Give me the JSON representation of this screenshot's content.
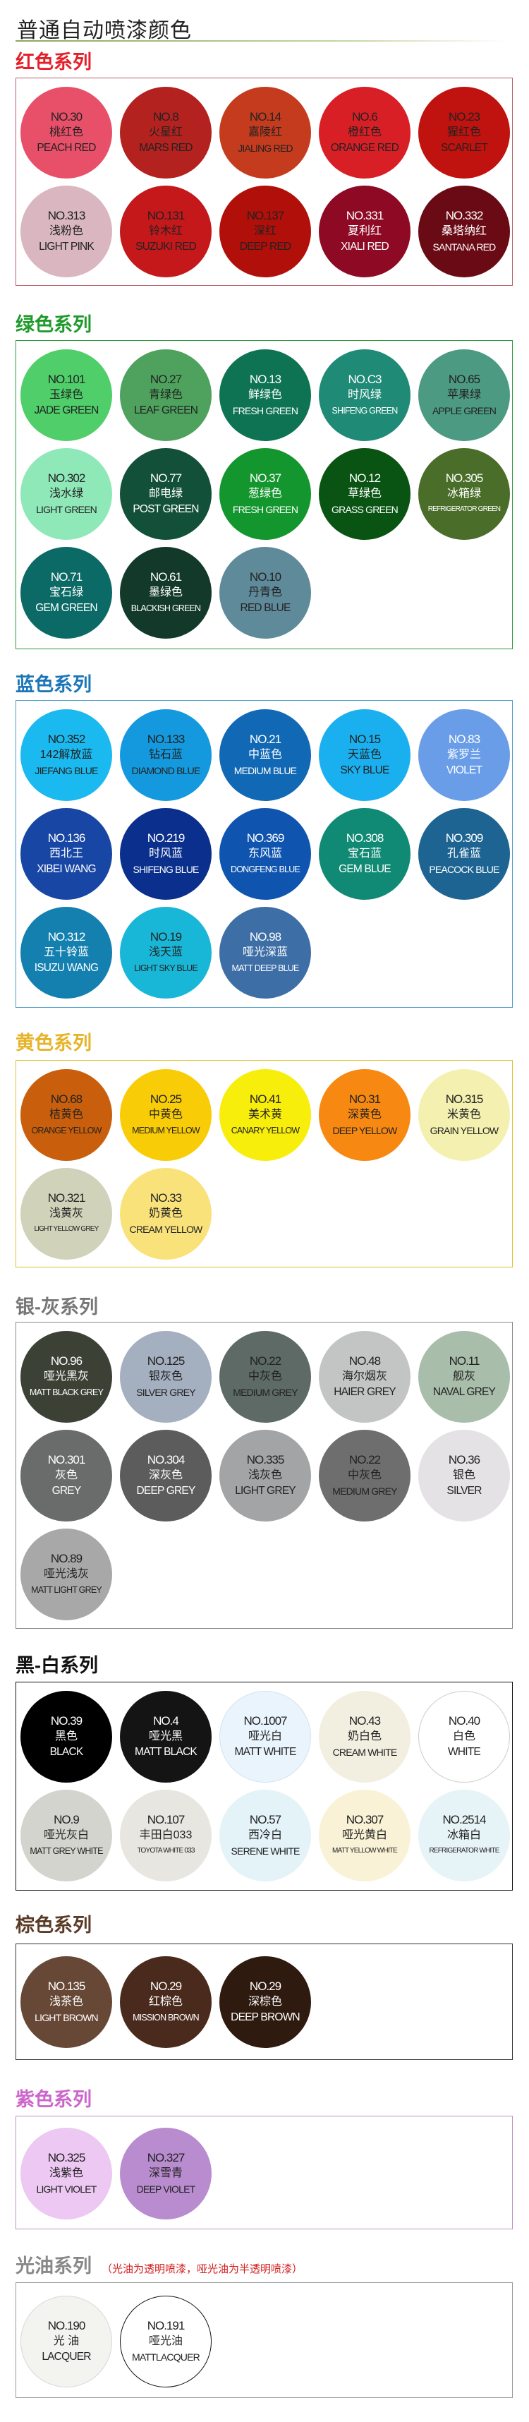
{
  "title": "普通自动喷漆颜色",
  "sections": [
    {
      "id": "red",
      "heading": "红色系列",
      "head_color": "#e5202a",
      "border": "#b8606c",
      "items": [
        {
          "no": "NO.30",
          "cn": "桃红色",
          "en": "PEACH RED",
          "color": "#e8506a",
          "text": "#222"
        },
        {
          "no": "NO.8",
          "cn": "火星红",
          "en": "MARS RED",
          "color": "#b3221f",
          "text": "#222"
        },
        {
          "no": "NO.14",
          "cn": "嘉陵红",
          "en": "JIALING RED",
          "color": "#c43b1e",
          "text": "#222"
        },
        {
          "no": "NO.6",
          "cn": "橙红色",
          "en": "ORANGE RED",
          "color": "#d91f26",
          "text": "#222"
        },
        {
          "no": "NO.23",
          "cn": "猩红色",
          "en": "SCARLET",
          "color": "#c0120e",
          "text": "#222"
        },
        {
          "no": "NO.313",
          "cn": "浅粉色",
          "en": "LIGHT PINK",
          "color": "#d9b6c0",
          "text": "#222"
        },
        {
          "no": "NO.131",
          "cn": "铃木红",
          "en": "SUZUKI RED",
          "color": "#c4181a",
          "text": "#222"
        },
        {
          "no": "NO.137",
          "cn": "深红",
          "en": "DEEP RED",
          "color": "#b00f0a",
          "text": "#222"
        },
        {
          "no": "NO.331",
          "cn": "夏利红",
          "en": "XIALI RED",
          "color": "#8e0a24",
          "text": "#fff"
        },
        {
          "no": "NO.332",
          "cn": "桑塔纳红",
          "en": "SANTANA RED",
          "color": "#6a0a14",
          "text": "#fff"
        }
      ]
    },
    {
      "id": "green",
      "heading": "绿色系列",
      "head_color": "#1e9a2b",
      "border": "#2e9a3a",
      "items": [
        {
          "no": "NO.101",
          "cn": "玉绿色",
          "en": "JADE GREEN",
          "color": "#4fce6a",
          "text": "#222"
        },
        {
          "no": "NO.27",
          "cn": "青绿色",
          "en": "LEAF GREEN",
          "color": "#4ea25e",
          "text": "#222"
        },
        {
          "no": "NO.13",
          "cn": "鲜绿色",
          "en": "FRESH GREEN",
          "color": "#0e7352",
          "text": "#fff"
        },
        {
          "no": "NO.C3",
          "cn": "时风绿",
          "en": "SHIFENG GREEN",
          "color": "#1f8a76",
          "text": "#fff"
        },
        {
          "no": "NO.65",
          "cn": "苹果绿",
          "en": "APPLE GREEN",
          "color": "#4c9a82",
          "text": "#222"
        },
        {
          "no": "NO.302",
          "cn": "浅水绿",
          "en": "LIGHT GREEN",
          "color": "#8fe8b8",
          "text": "#222"
        },
        {
          "no": "NO.77",
          "cn": "邮电绿",
          "en": "POST GREEN",
          "color": "#13503a",
          "text": "#fff"
        },
        {
          "no": "NO.37",
          "cn": "葱绿色",
          "en": "FRESH GREEN",
          "color": "#14962e",
          "text": "#fff"
        },
        {
          "no": "NO.12",
          "cn": "草绿色",
          "en": "GRASS GREEN",
          "color": "#0a5413",
          "text": "#fff"
        },
        {
          "no": "NO.305",
          "cn": "冰箱绿",
          "en": "REFRIGERATOR GREEN",
          "color": "#4a6e2a",
          "text": "#fff"
        },
        {
          "no": "NO.71",
          "cn": "宝石绿",
          "en": "GEM GREEN",
          "color": "#0c6a66",
          "text": "#fff"
        },
        {
          "no": "NO.61",
          "cn": "墨绿色",
          "en": "BLACKISH GREEN",
          "color": "#12392a",
          "text": "#fff"
        },
        {
          "no": "NO.10",
          "cn": "丹青色",
          "en": "RED BLUE",
          "color": "#5f8a9a",
          "text": "#222"
        }
      ]
    },
    {
      "id": "blue",
      "heading": "蓝色系列",
      "head_color": "#1a76b8",
      "border": "#4b9cc8",
      "items": [
        {
          "no": "NO.352",
          "cn": "142解放蓝",
          "en": "JIEFANG BLUE",
          "color": "#1ab9f0",
          "text": "#222"
        },
        {
          "no": "NO.133",
          "cn": "钻石蓝",
          "en": "DIAMOND BLUE",
          "color": "#1499de",
          "text": "#222"
        },
        {
          "no": "NO.21",
          "cn": "中蓝色",
          "en": "MEDIUM BLUE",
          "color": "#1168b4",
          "text": "#fff"
        },
        {
          "no": "NO.15",
          "cn": "天蓝色",
          "en": "SKY BLUE",
          "color": "#1ab0ef",
          "text": "#222"
        },
        {
          "no": "NO.83",
          "cn": "紫罗兰",
          "en": "VIOLET",
          "color": "#6a9de8",
          "text": "#fff"
        },
        {
          "no": "NO.136",
          "cn": "西北王",
          "en": "XIBEI WANG",
          "color": "#1746a4",
          "text": "#fff"
        },
        {
          "no": "NO.219",
          "cn": "时风蓝",
          "en": "SHIFENG BLUE",
          "color": "#0b2f8c",
          "text": "#fff"
        },
        {
          "no": "NO.369",
          "cn": "东风蓝",
          "en": "DONGFENG BLUE",
          "color": "#0f55b0",
          "text": "#fff"
        },
        {
          "no": "NO.308",
          "cn": "宝石蓝",
          "en": "GEM BLUE",
          "color": "#108a74",
          "text": "#fff"
        },
        {
          "no": "NO.309",
          "cn": "孔雀蓝",
          "en": "PEACOCK BLUE",
          "color": "#1d6492",
          "text": "#fff"
        },
        {
          "no": "NO.312",
          "cn": "五十铃蓝",
          "en": "ISUZU WANG",
          "color": "#1480b0",
          "text": "#fff"
        },
        {
          "no": "NO.19",
          "cn": "浅天蓝",
          "en": "LIGHT SKY BLUE",
          "color": "#19b7d7",
          "text": "#222"
        },
        {
          "no": "NO.98",
          "cn": "哑光深蓝",
          "en": "MATT DEEP BLUE",
          "color": "#3d6ea6",
          "text": "#fff"
        }
      ]
    },
    {
      "id": "yellow",
      "heading": "黄色系列",
      "head_color": "#e6b428",
      "border": "#e0c030",
      "items": [
        {
          "no": "NO.68",
          "cn": "桔黄色",
          "en": "ORANGE YELLOW",
          "color": "#c95f0c",
          "text": "#222"
        },
        {
          "no": "NO.25",
          "cn": "中黄色",
          "en": "MEDIUM YELLOW",
          "color": "#f9cc08",
          "text": "#222"
        },
        {
          "no": "NO.41",
          "cn": "美术黄",
          "en": "CANARY YELLOW",
          "color": "#f8ee0c",
          "text": "#222"
        },
        {
          "no": "NO.31",
          "cn": "深黄色",
          "en": "DEEP YELLOW",
          "color": "#f78812",
          "text": "#222"
        },
        {
          "no": "NO.315",
          "cn": "米黄色",
          "en": "GRAIN YELLOW",
          "color": "#f4f0b0",
          "text": "#222"
        },
        {
          "no": "NO.321",
          "cn": "浅黄灰",
          "en": "LIGHT YELLOW GREY",
          "color": "#d0d2ba",
          "text": "#222"
        },
        {
          "no": "NO.33",
          "cn": "奶黄色",
          "en": "CREAM YELLOW",
          "color": "#fae27a",
          "text": "#222"
        }
      ]
    },
    {
      "id": "grey",
      "heading": "银-灰系列",
      "head_color": "#777777",
      "border": "#888888",
      "items": [
        {
          "no": "NO.96",
          "cn": "哑光黑灰",
          "en": "MATT BLACK GREY",
          "color": "#3c4136",
          "text": "#fff"
        },
        {
          "no": "NO.125",
          "cn": "银灰色",
          "en": "SILVER GREY",
          "color": "#a4afbf",
          "text": "#222"
        },
        {
          "no": "NO.22",
          "cn": "中灰色",
          "en": "MEDIUM GREY",
          "color": "#5d6a66",
          "text": "#222"
        },
        {
          "no": "NO.48",
          "cn": "海尔烟灰",
          "en": "HAIER GREY",
          "color": "#c3c5c5",
          "text": "#222"
        },
        {
          "no": "NO.11",
          "cn": "舰灰",
          "en": "NAVAL GREY",
          "color": "#a8bdaa",
          "text": "#222"
        },
        {
          "no": "NO.301",
          "cn": "灰色",
          "en": "GREY",
          "color": "#6a6c6c",
          "text": "#fff"
        },
        {
          "no": "NO.304",
          "cn": "深灰色",
          "en": "DEEP GREY",
          "color": "#5c5c5c",
          "text": "#fff"
        },
        {
          "no": "NO.335",
          "cn": "浅灰色",
          "en": "LIGHT GREY",
          "color": "#a3a4a5",
          "text": "#222"
        },
        {
          "no": "NO.22",
          "cn": "中灰色",
          "en": "MEDIUM GREY",
          "color": "#6e6e6e",
          "text": "#222"
        },
        {
          "no": "NO.36",
          "cn": "银色",
          "en": "SILVER",
          "color": "#e4e2e4",
          "text": "#222"
        },
        {
          "no": "NO.89",
          "cn": "哑光浅灰",
          "en": "MATT LIGHT GREY",
          "color": "#a8a8a8",
          "text": "#222"
        }
      ]
    },
    {
      "id": "black-white",
      "heading": "黑-白系列",
      "head_color": "#111111",
      "border": "#111111",
      "items": [
        {
          "no": "NO.39",
          "cn": "黑色",
          "en": "BLACK",
          "color": "#000000",
          "text": "#fff"
        },
        {
          "no": "NO.4",
          "cn": "哑光黑",
          "en": "MATT BLACK",
          "color": "#141414",
          "text": "#fff"
        },
        {
          "no": "NO.1007",
          "cn": "哑光白",
          "en": "MATT WHITE",
          "color": "#eaf4fd",
          "text": "#222",
          "ring": "#d6e2ee"
        },
        {
          "no": "NO.43",
          "cn": "奶白色",
          "en": "CREAM WHITE",
          "color": "#f2efe0",
          "text": "#222"
        },
        {
          "no": "NO.40",
          "cn": "白色",
          "en": "WHITE",
          "color": "#ffffff",
          "text": "#222",
          "ring": "#cccccc"
        },
        {
          "no": "NO.9",
          "cn": "哑光灰白",
          "en": "MATT GREY WHITE",
          "color": "#d4d4cf",
          "text": "#222"
        },
        {
          "no": "NO.107",
          "cn": "丰田白033",
          "en": "TOYOTA WHITE 033",
          "color": "#e8e6e1",
          "text": "#222"
        },
        {
          "no": "NO.57",
          "cn": "西冷白",
          "en": "SERENE WHITE",
          "color": "#e4f3f8",
          "text": "#222"
        },
        {
          "no": "NO.307",
          "cn": "哑光黄白",
          "en": "MATT YELLOW WHITE",
          "color": "#faf2d6",
          "text": "#222"
        },
        {
          "no": "NO.2514",
          "cn": "冰箱白",
          "en": "REFRIGERATOR WHITE",
          "color": "#e6f3f7",
          "text": "#222"
        }
      ]
    },
    {
      "id": "brown",
      "heading": "棕色系列",
      "head_color": "#5a3a26",
      "border": "#333333",
      "items": [
        {
          "no": "NO.135",
          "cn": "浅茶色",
          "en": "LIGHT BROWN",
          "color": "#674836",
          "text": "#fff"
        },
        {
          "no": "NO.29",
          "cn": "红棕色",
          "en": "MISSION BROWN",
          "color": "#4a2a1c",
          "text": "#fff"
        },
        {
          "no": "NO.29",
          "cn": "深棕色",
          "en": "DEEP BROWN",
          "color": "#2e1a0f",
          "text": "#fff"
        }
      ]
    },
    {
      "id": "purple",
      "heading": "紫色系列",
      "head_color": "#cc66cc",
      "border": "#c090c0",
      "items": [
        {
          "no": "NO.325",
          "cn": "浅紫色",
          "en": "LIGHT VIOLET",
          "color": "#ecc8f2",
          "text": "#222"
        },
        {
          "no": "NO.327",
          "cn": "深雪青",
          "en": "DEEP VIOLET",
          "color": "#b98ccf",
          "text": "#222"
        }
      ]
    },
    {
      "id": "lacquer",
      "heading": "光油系列",
      "note": "（光油为透明喷漆，哑光油为半透明喷漆）",
      "head_color": "#888888",
      "border": "#999999",
      "items": [
        {
          "no": "NO.190",
          "cn": "光 油",
          "en": "LACQUER",
          "color": "#f3f3ef",
          "text": "#222",
          "ring": "#d8d8d4"
        },
        {
          "no": "NO.191",
          "cn": "哑光油",
          "en": "MATTLACQUER",
          "color": "#ffffff",
          "text": "#222",
          "ring": "#111111"
        }
      ]
    }
  ]
}
